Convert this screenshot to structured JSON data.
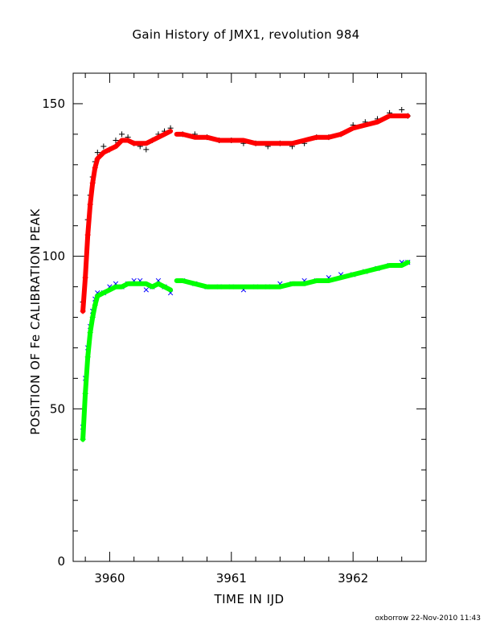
{
  "chart_data": {
    "type": "scatter",
    "title": "Gain History of JMX1, revolution 984",
    "xlabel": "TIME IN IJD",
    "ylabel": "POSITION OF Fe CALIBRATION PEAK",
    "xlim": [
      3959.7,
      3962.6
    ],
    "ylim": [
      0,
      160
    ],
    "x_ticks": [
      3960,
      3961,
      3962
    ],
    "x_tick_labels": [
      "3960",
      "3961",
      "3962"
    ],
    "y_ticks": [
      0,
      50,
      100,
      150
    ],
    "y_tick_labels": [
      "0",
      "50",
      "100",
      "150"
    ],
    "grid": false,
    "legend": "none",
    "data_gap": [
      3960.5,
      3960.55
    ],
    "series": [
      {
        "marker": "plus",
        "color": "#000000",
        "x": [
          3959.78,
          3959.8,
          3959.82,
          3959.84,
          3959.86,
          3959.88,
          3959.9,
          3959.95,
          3960.0,
          3960.05,
          3960.1,
          3960.15,
          3960.2,
          3960.25,
          3960.3,
          3960.35,
          3960.4,
          3960.45,
          3960.5,
          3960.6,
          3960.7,
          3960.8,
          3960.9,
          3961.0,
          3961.1,
          3961.2,
          3961.3,
          3961.4,
          3961.5,
          3961.6,
          3961.7,
          3961.8,
          3961.9,
          3962.0,
          3962.1,
          3962.2,
          3962.3,
          3962.4,
          3962.45
        ],
        "y": [
          85,
          100,
          112,
          120,
          126,
          131,
          134,
          136,
          135,
          138,
          140,
          139,
          137,
          136,
          135,
          138,
          140,
          141,
          142,
          140,
          140,
          139,
          138,
          138,
          137,
          137,
          136,
          137,
          136,
          137,
          139,
          139,
          140,
          143,
          144,
          145,
          147,
          148,
          146
        ]
      },
      {
        "marker": "x",
        "color": "#0000ff",
        "x": [
          3959.78,
          3959.8,
          3959.82,
          3959.84,
          3959.86,
          3959.88,
          3959.9,
          3959.95,
          3960.0,
          3960.05,
          3960.1,
          3960.15,
          3960.2,
          3960.25,
          3960.3,
          3960.35,
          3960.4,
          3960.45,
          3960.5,
          3960.6,
          3960.7,
          3960.8,
          3960.9,
          3961.0,
          3961.1,
          3961.2,
          3961.3,
          3961.4,
          3961.5,
          3961.6,
          3961.7,
          3961.8,
          3961.9,
          3962.0,
          3962.1,
          3962.2,
          3962.3,
          3962.4,
          3962.45
        ],
        "y": [
          44,
          60,
          70,
          77,
          82,
          86,
          88,
          88,
          90,
          91,
          90,
          91,
          92,
          92,
          89,
          90,
          92,
          90,
          88,
          92,
          91,
          90,
          90,
          90,
          89,
          90,
          90,
          91,
          91,
          92,
          92,
          93,
          94,
          94,
          95,
          96,
          97,
          98,
          98
        ]
      },
      {
        "marker": "line",
        "color": "#ff0000",
        "x": [
          3959.78,
          3959.8,
          3959.82,
          3959.84,
          3959.86,
          3959.88,
          3959.9,
          3959.95,
          3960.0,
          3960.05,
          3960.1,
          3960.15,
          3960.2,
          3960.25,
          3960.3,
          3960.35,
          3960.4,
          3960.45,
          3960.5,
          3960.55,
          3960.6,
          3960.7,
          3960.8,
          3960.9,
          3961.0,
          3961.1,
          3961.2,
          3961.3,
          3961.4,
          3961.5,
          3961.6,
          3961.7,
          3961.8,
          3961.9,
          3962.0,
          3962.1,
          3962.2,
          3962.3,
          3962.4,
          3962.45
        ],
        "y": [
          82,
          93,
          107,
          117,
          124,
          129,
          132,
          134,
          135,
          136,
          138,
          138,
          137,
          137,
          137,
          138,
          139,
          140,
          141,
          140,
          140,
          139,
          139,
          138,
          138,
          138,
          137,
          137,
          137,
          137,
          138,
          139,
          139,
          140,
          142,
          143,
          144,
          146,
          146,
          146
        ]
      },
      {
        "marker": "line",
        "color": "#00ff00",
        "x": [
          3959.78,
          3959.8,
          3959.82,
          3959.84,
          3959.86,
          3959.88,
          3959.9,
          3959.95,
          3960.0,
          3960.05,
          3960.1,
          3960.15,
          3960.2,
          3960.25,
          3960.3,
          3960.35,
          3960.4,
          3960.45,
          3960.5,
          3960.55,
          3960.6,
          3960.7,
          3960.8,
          3960.9,
          3961.0,
          3961.1,
          3961.2,
          3961.3,
          3961.4,
          3961.5,
          3961.6,
          3961.7,
          3961.8,
          3961.9,
          3962.0,
          3962.1,
          3962.2,
          3962.3,
          3962.4,
          3962.45
        ],
        "y": [
          40,
          55,
          67,
          75,
          80,
          84,
          87,
          88,
          89,
          90,
          90,
          91,
          91,
          91,
          91,
          90,
          91,
          90,
          89,
          92,
          92,
          91,
          90,
          90,
          90,
          90,
          90,
          90,
          90,
          91,
          91,
          92,
          92,
          93,
          94,
          95,
          96,
          97,
          97,
          98
        ]
      }
    ]
  },
  "footer": {
    "credit": "oxborrow 22-Nov-2010 11:43"
  }
}
